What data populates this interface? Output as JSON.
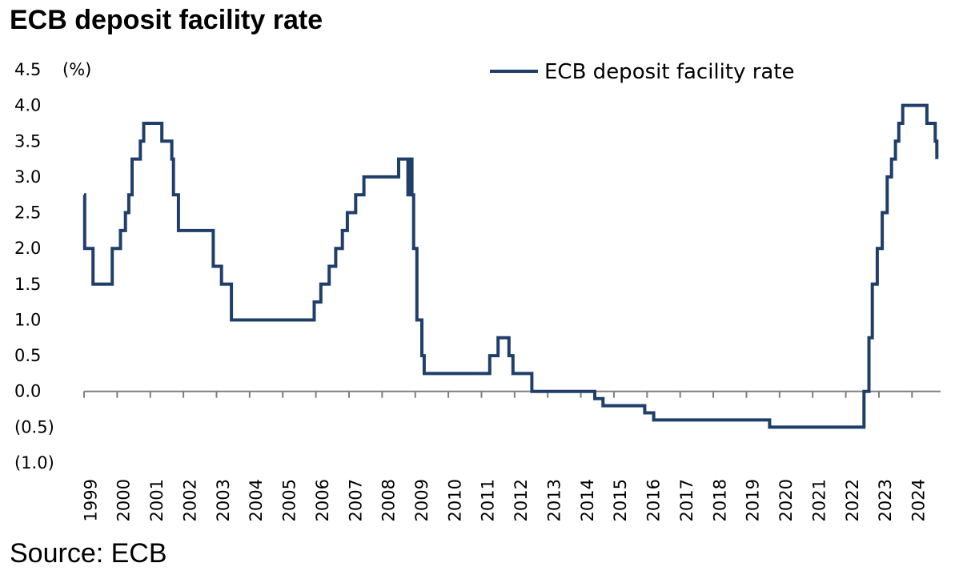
{
  "chart_data": {
    "type": "line",
    "title": "ECB deposit facility rate",
    "source": "Source: ECB",
    "ylabel_unit": "(%)",
    "xlabel": "",
    "ylim": [
      -1.0,
      4.5
    ],
    "xlim": [
      1999.0,
      2024.75
    ],
    "legend_position": "top-right",
    "grid": false,
    "y_ticks": [
      {
        "value": 4.5,
        "label": "4.5"
      },
      {
        "value": 4.0,
        "label": "4.0"
      },
      {
        "value": 3.5,
        "label": "3.5"
      },
      {
        "value": 3.0,
        "label": "3.0"
      },
      {
        "value": 2.5,
        "label": "2.5"
      },
      {
        "value": 2.0,
        "label": "2.0"
      },
      {
        "value": 1.5,
        "label": "1.5"
      },
      {
        "value": 1.0,
        "label": "1.0"
      },
      {
        "value": 0.5,
        "label": "0.5"
      },
      {
        "value": 0.0,
        "label": "0.0"
      },
      {
        "value": -0.5,
        "label": "(0.5)"
      },
      {
        "value": -1.0,
        "label": "(1.0)"
      }
    ],
    "x_ticks": [
      "1999",
      "2000",
      "2001",
      "2002",
      "2003",
      "2004",
      "2005",
      "2006",
      "2007",
      "2008",
      "2009",
      "2010",
      "2011",
      "2012",
      "2013",
      "2014",
      "2015",
      "2016",
      "2017",
      "2018",
      "2019",
      "2020",
      "2021",
      "2022",
      "2023",
      "2024"
    ],
    "series": [
      {
        "name": "ECB deposit facility rate",
        "color": "#1f3f6a",
        "step": true,
        "points": [
          [
            1999.0,
            2.75
          ],
          [
            1999.02,
            2.0
          ],
          [
            1999.27,
            1.5
          ],
          [
            1999.85,
            2.0
          ],
          [
            2000.1,
            2.25
          ],
          [
            2000.25,
            2.5
          ],
          [
            2000.35,
            2.75
          ],
          [
            2000.45,
            3.25
          ],
          [
            2000.7,
            3.5
          ],
          [
            2000.8,
            3.75
          ],
          [
            2001.35,
            3.5
          ],
          [
            2001.65,
            3.25
          ],
          [
            2001.7,
            2.75
          ],
          [
            2001.85,
            2.25
          ],
          [
            2002.9,
            1.75
          ],
          [
            2003.15,
            1.5
          ],
          [
            2003.45,
            1.0
          ],
          [
            2005.95,
            1.25
          ],
          [
            2006.15,
            1.5
          ],
          [
            2006.4,
            1.75
          ],
          [
            2006.6,
            2.0
          ],
          [
            2006.8,
            2.25
          ],
          [
            2006.95,
            2.5
          ],
          [
            2007.2,
            2.75
          ],
          [
            2007.45,
            3.0
          ],
          [
            2008.5,
            3.25
          ],
          [
            2008.78,
            2.75
          ],
          [
            2008.87,
            3.25
          ],
          [
            2008.9,
            2.75
          ],
          [
            2008.95,
            2.0
          ],
          [
            2009.05,
            1.0
          ],
          [
            2009.2,
            0.5
          ],
          [
            2009.27,
            0.25
          ],
          [
            2011.25,
            0.5
          ],
          [
            2011.5,
            0.75
          ],
          [
            2011.83,
            0.5
          ],
          [
            2011.95,
            0.25
          ],
          [
            2012.52,
            0.0
          ],
          [
            2014.42,
            -0.1
          ],
          [
            2014.67,
            -0.2
          ],
          [
            2015.93,
            -0.3
          ],
          [
            2016.2,
            -0.4
          ],
          [
            2019.7,
            -0.5
          ],
          [
            2022.55,
            0.0
          ],
          [
            2022.7,
            0.75
          ],
          [
            2022.8,
            1.5
          ],
          [
            2022.95,
            2.0
          ],
          [
            2023.1,
            2.5
          ],
          [
            2023.25,
            3.0
          ],
          [
            2023.38,
            3.25
          ],
          [
            2023.5,
            3.5
          ],
          [
            2023.6,
            3.75
          ],
          [
            2023.72,
            4.0
          ],
          [
            2024.45,
            3.75
          ],
          [
            2024.7,
            3.5
          ],
          [
            2024.75,
            3.25
          ]
        ]
      }
    ]
  }
}
